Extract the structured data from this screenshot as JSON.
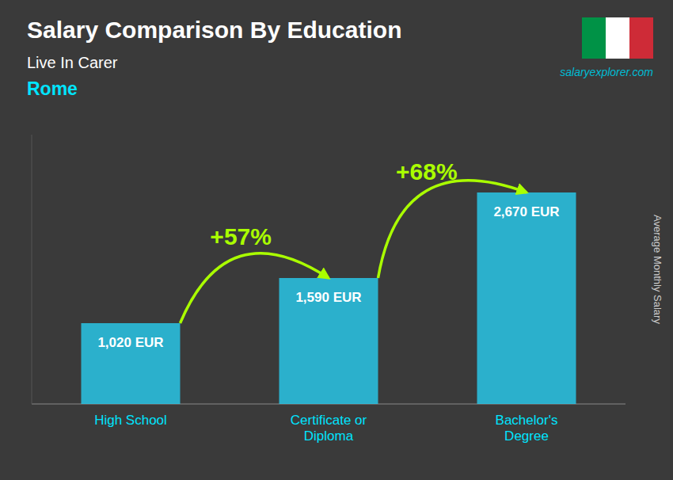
{
  "chart_data": {
    "type": "bar",
    "title": "Salary Comparison By Education",
    "subtitle": "Live In Carer",
    "city": "Rome",
    "watermark": "salaryexplorer.com",
    "ylabel": "Average Monthly Salary",
    "categories": [
      "High School",
      "Certificate or\nDiploma",
      "Bachelor's\nDegree"
    ],
    "values": [
      1020,
      1590,
      2670
    ],
    "value_labels": [
      "1,020 EUR",
      "1,590 EUR",
      "2,670 EUR"
    ],
    "data_labels": true,
    "annotations": [
      "+57%",
      "+68%"
    ],
    "color": "#29c5e6",
    "ylim": [
      0,
      3400
    ],
    "tick_labels": "x"
  }
}
